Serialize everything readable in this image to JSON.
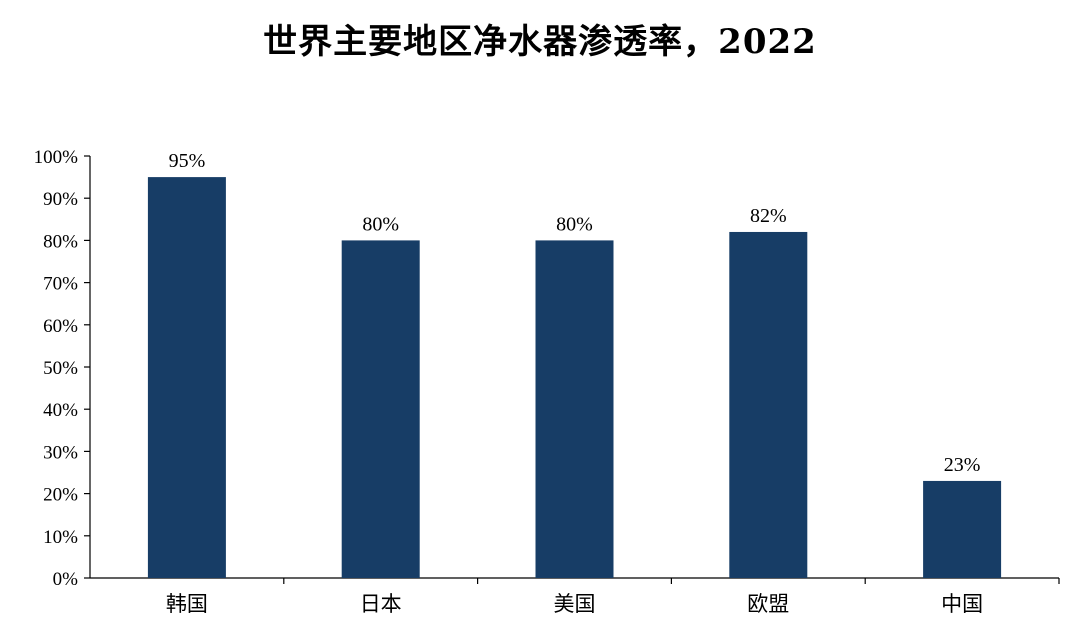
{
  "title": "世界主要地区净水器渗透率，2022",
  "colors": {
    "bar": "#173d66",
    "axis": "#000000"
  },
  "chart_data": {
    "type": "bar",
    "title": "世界主要地区净水器渗透率，2022",
    "categories": [
      "韩国",
      "日本",
      "美国",
      "欧盟",
      "中国"
    ],
    "values": [
      95,
      80,
      80,
      82,
      23
    ],
    "data_labels": [
      "95%",
      "80%",
      "80%",
      "82%",
      "23%"
    ],
    "y_ticks": [
      "0%",
      "10%",
      "20%",
      "30%",
      "40%",
      "50%",
      "60%",
      "70%",
      "80%",
      "90%",
      "100%"
    ],
    "ylim": [
      0,
      100
    ],
    "xlabel": "",
    "ylabel": "",
    "grid": false,
    "legend": "none"
  }
}
